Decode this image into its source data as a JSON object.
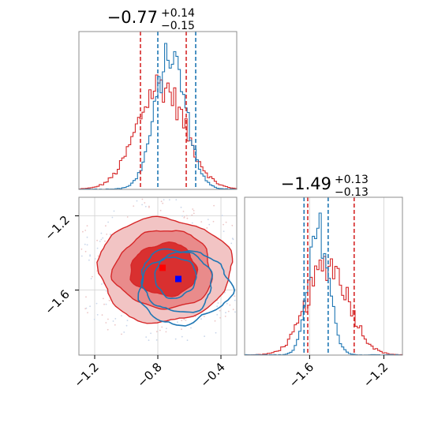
{
  "chart_data": {
    "type": "corner",
    "colors": {
      "red": "#d62728",
      "blue": "#1f77b4",
      "red_fill_light": "#f2c4c4",
      "red_fill_mid": "#e98b8b",
      "red_fill_dark": "#d93030"
    },
    "params": [
      {
        "title_value": "−0.77",
        "title_plus": "+0.14",
        "title_minus": "−0.15",
        "range": [
          -1.3,
          -0.3
        ],
        "ticks": [
          {
            "value": -1.2,
            "label": "−1.2"
          },
          {
            "value": -0.8,
            "label": "−0.8"
          },
          {
            "value": -0.4,
            "label": "−0.4"
          }
        ],
        "red_quantiles": [
          -0.91,
          -0.62
        ],
        "blue_quantiles": [
          -0.8,
          -0.56
        ],
        "blue_hist": {
          "center": -0.72,
          "sigma": 0.097
        },
        "red_hist": {
          "center": -0.78,
          "sigma": 0.15
        }
      },
      {
        "title_value": "−1.49",
        "title_plus": "+0.13",
        "title_minus": "−0.13",
        "range": [
          -1.95,
          -1.1
        ],
        "ticks": [
          {
            "value": -1.6,
            "label": "−1.6"
          },
          {
            "value": -1.2,
            "label": "−1.2"
          }
        ],
        "red_quantiles": [
          -1.61,
          -1.36
        ],
        "blue_quantiles": [
          -1.63,
          -1.5
        ],
        "blue_hist": {
          "center": -1.55,
          "sigma": 0.055
        },
        "red_hist": {
          "center": -1.5,
          "sigma": 0.11
        }
      }
    ],
    "joint": {
      "red_marker": [
        -0.77,
        -1.48
      ],
      "blue_marker": [
        -0.67,
        -1.54
      ],
      "red_contours": [
        {
          "cx": -0.76,
          "cy": -1.49,
          "rx": 0.21,
          "ry": 0.14
        },
        {
          "cx": -0.76,
          "cy": -1.49,
          "rx": 0.31,
          "ry": 0.21
        },
        {
          "cx": -0.76,
          "cy": -1.49,
          "rx": 0.42,
          "ry": 0.28
        }
      ],
      "blue_contours": [
        {
          "cx": -0.69,
          "cy": -1.53,
          "rx": 0.13,
          "ry": 0.11
        },
        {
          "cx": -0.67,
          "cy": -1.56,
          "rx": 0.22,
          "ry": 0.16
        },
        {
          "cx": -0.64,
          "cy": -1.58,
          "rx": 0.29,
          "ry": 0.2
        }
      ]
    },
    "grid": true
  }
}
